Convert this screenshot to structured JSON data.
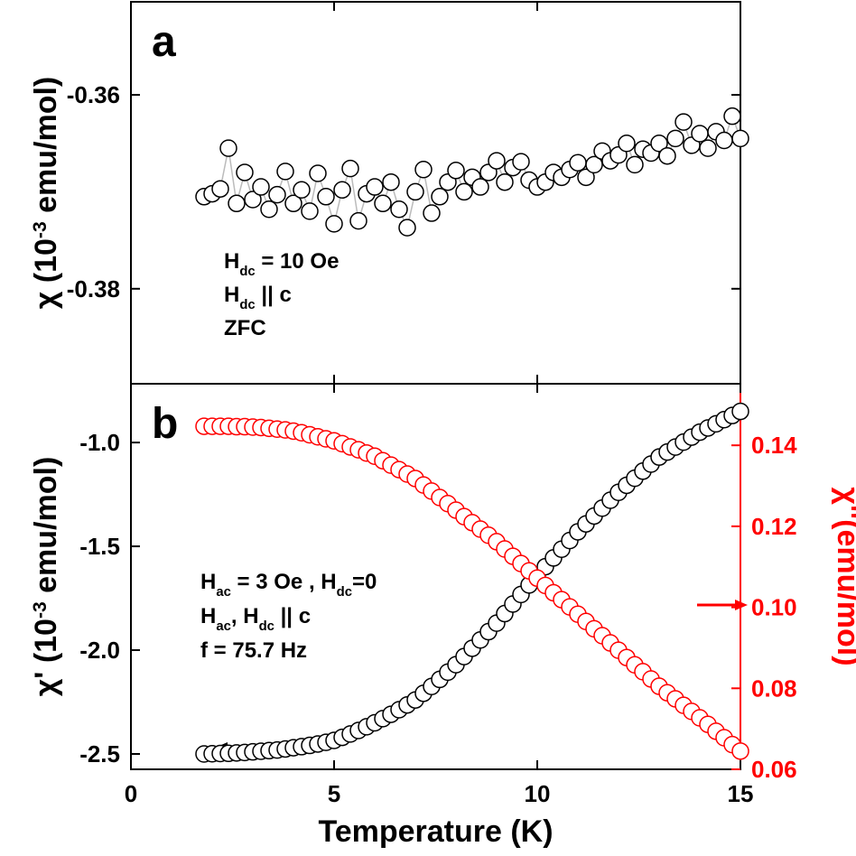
{
  "chart_data": [
    {
      "type": "scatter",
      "panel_label": "a",
      "ylabel": [
        {
          "t": "χ (10"
        },
        {
          "sup": "-3"
        },
        {
          "t": " emu/mol)"
        }
      ],
      "annotations": [
        [
          {
            "t": "H"
          },
          {
            "sub": "dc"
          },
          {
            "t": " = 10 Oe"
          }
        ],
        [
          {
            "t": "H"
          },
          {
            "sub": "dc"
          },
          {
            "t": " || c"
          }
        ],
        [
          {
            "t": "ZFC"
          }
        ]
      ],
      "x": [
        1.8,
        2.0,
        2.2,
        2.4,
        2.6,
        2.8,
        3.0,
        3.2,
        3.4,
        3.6,
        3.8,
        4.0,
        4.2,
        4.4,
        4.6,
        4.8,
        5.0,
        5.2,
        5.4,
        5.6,
        5.8,
        6.0,
        6.2,
        6.4,
        6.6,
        6.8,
        7.0,
        7.2,
        7.4,
        7.6,
        7.8,
        8.0,
        8.2,
        8.4,
        8.6,
        8.8,
        9.0,
        9.2,
        9.4,
        9.6,
        9.8,
        10.0,
        10.2,
        10.4,
        10.6,
        10.8,
        11.0,
        11.2,
        11.4,
        11.6,
        11.8,
        12.0,
        12.2,
        12.4,
        12.6,
        12.8,
        13.0,
        13.2,
        13.4,
        13.6,
        13.8,
        14.0,
        14.2,
        14.4,
        14.6,
        14.8,
        15.0
      ],
      "values": [
        -0.3705,
        -0.3702,
        -0.3697,
        -0.3655,
        -0.3712,
        -0.368,
        -0.3708,
        -0.3695,
        -0.3718,
        -0.3703,
        -0.3679,
        -0.3712,
        -0.3698,
        -0.372,
        -0.3681,
        -0.3705,
        -0.3733,
        -0.3698,
        -0.3676,
        -0.373,
        -0.3702,
        -0.3695,
        -0.3712,
        -0.369,
        -0.3718,
        -0.3737,
        -0.37,
        -0.3677,
        -0.3722,
        -0.3705,
        -0.369,
        -0.3678,
        -0.37,
        -0.3685,
        -0.3695,
        -0.368,
        -0.3668,
        -0.369,
        -0.3675,
        -0.3669,
        -0.3688,
        -0.3695,
        -0.369,
        -0.368,
        -0.3685,
        -0.3677,
        -0.367,
        -0.3685,
        -0.3672,
        -0.3658,
        -0.3668,
        -0.3662,
        -0.365,
        -0.3672,
        -0.3656,
        -0.366,
        -0.365,
        -0.3663,
        -0.3645,
        -0.3628,
        -0.3652,
        -0.364,
        -0.3655,
        -0.3638,
        -0.3647,
        -0.3622,
        -0.3645
      ],
      "color": "#000000",
      "line_color": "#bbbbbb",
      "xlim": [
        0,
        15
      ],
      "xticks": [
        0,
        5,
        10,
        15
      ],
      "ylim": [
        -0.3898,
        -0.3504
      ],
      "yticks": [
        -0.38,
        -0.36
      ]
    },
    {
      "type": "scatter",
      "panel_label": "b",
      "xlabel": "Temperature (K)",
      "ylabel": [
        {
          "t": "χ' (10"
        },
        {
          "sup": "-3"
        },
        {
          "t": " emu/mol)"
        }
      ],
      "y2label": [
        {
          "t": "χ''(emu/mol)"
        }
      ],
      "annotations": [
        [
          {
            "t": "H"
          },
          {
            "sub": "ac"
          },
          {
            "t": " = 3 Oe , H"
          },
          {
            "sub": "dc"
          },
          {
            "t": "=0"
          }
        ],
        [
          {
            "t": "H"
          },
          {
            "sub": "ac"
          },
          {
            "t": ", H"
          },
          {
            "sub": "dc"
          },
          {
            "t": " || c"
          }
        ],
        [
          {
            "t": "f = 75.7 Hz"
          }
        ]
      ],
      "x": [
        1.8,
        2.0,
        2.2,
        2.4,
        2.6,
        2.8,
        3.0,
        3.2,
        3.4,
        3.6,
        3.8,
        4.0,
        4.2,
        4.4,
        4.6,
        4.8,
        5.0,
        5.2,
        5.4,
        5.6,
        5.8,
        6.0,
        6.2,
        6.4,
        6.6,
        6.8,
        7.0,
        7.2,
        7.4,
        7.6,
        7.8,
        8.0,
        8.2,
        8.4,
        8.6,
        8.8,
        9.0,
        9.2,
        9.4,
        9.6,
        9.8,
        10.0,
        10.2,
        10.4,
        10.6,
        10.8,
        11.0,
        11.2,
        11.4,
        11.6,
        11.8,
        12.0,
        12.2,
        12.4,
        12.6,
        12.8,
        13.0,
        13.2,
        13.4,
        13.6,
        13.8,
        14.0,
        14.2,
        14.4,
        14.6,
        14.8,
        15.0
      ],
      "series": [
        {
          "color": "#000000",
          "values": [
            -2.5,
            -2.499,
            -2.498,
            -2.497,
            -2.495,
            -2.493,
            -2.49,
            -2.487,
            -2.484,
            -2.481,
            -2.476,
            -2.47,
            -2.465,
            -2.459,
            -2.452,
            -2.444,
            -2.435,
            -2.42,
            -2.404,
            -2.387,
            -2.369,
            -2.35,
            -2.33,
            -2.309,
            -2.287,
            -2.264,
            -2.24,
            -2.208,
            -2.175,
            -2.141,
            -2.106,
            -2.07,
            -2.031,
            -1.991,
            -1.951,
            -1.911,
            -1.87,
            -1.824,
            -1.778,
            -1.732,
            -1.686,
            -1.64,
            -1.598,
            -1.556,
            -1.514,
            -1.472,
            -1.43,
            -1.392,
            -1.354,
            -1.316,
            -1.278,
            -1.24,
            -1.206,
            -1.172,
            -1.138,
            -1.104,
            -1.07,
            -1.046,
            -1.022,
            -0.998,
            -0.974,
            -0.95,
            -0.93,
            -0.91,
            -0.89,
            -0.87,
            -0.85
          ]
        },
        {
          "color": "#ff0000",
          "axis": "y2",
          "values": [
            0.1447,
            0.1447,
            0.1447,
            0.1447,
            0.1446,
            0.1446,
            0.1445,
            0.1444,
            0.1442,
            0.144,
            0.1438,
            0.1435,
            0.1431,
            0.1426,
            0.1421,
            0.1416,
            0.1411,
            0.1404,
            0.1396,
            0.1389,
            0.1381,
            0.1373,
            0.1362,
            0.1351,
            0.134,
            0.1329,
            0.1318,
            0.1302,
            0.1287,
            0.1271,
            0.1256,
            0.124,
            0.1224,
            0.1209,
            0.1193,
            0.1178,
            0.1162,
            0.1144,
            0.1126,
            0.1108,
            0.109,
            0.1072,
            0.1054,
            0.1036,
            0.1019,
            0.1001,
            0.0983,
            0.0965,
            0.0947,
            0.093,
            0.0912,
            0.0894,
            0.0876,
            0.0858,
            0.0841,
            0.0823,
            0.0805,
            0.0789,
            0.0774,
            0.0758,
            0.0743,
            0.0727,
            0.0711,
            0.0694,
            0.0678,
            0.0661,
            0.0645
          ]
        }
      ],
      "xlim": [
        0,
        15
      ],
      "xticks": [
        0,
        5,
        10,
        15
      ],
      "ylim": [
        -2.574,
        -0.717
      ],
      "yticks": [
        {
          "value": -2.5,
          "label": "-2.5"
        },
        {
          "value": -2.0,
          "label": "-2.0"
        },
        {
          "value": -1.5,
          "label": "-1.5"
        },
        {
          "value": -1.0,
          "label": "-1.0"
        }
      ],
      "y2lim": [
        0.06,
        0.1552
      ],
      "y2ticks": [
        0.06,
        0.08,
        {
          "value": 0.1,
          "label": "0.10"
        },
        0.12,
        0.14
      ],
      "y2color": "#ff0000"
    }
  ]
}
